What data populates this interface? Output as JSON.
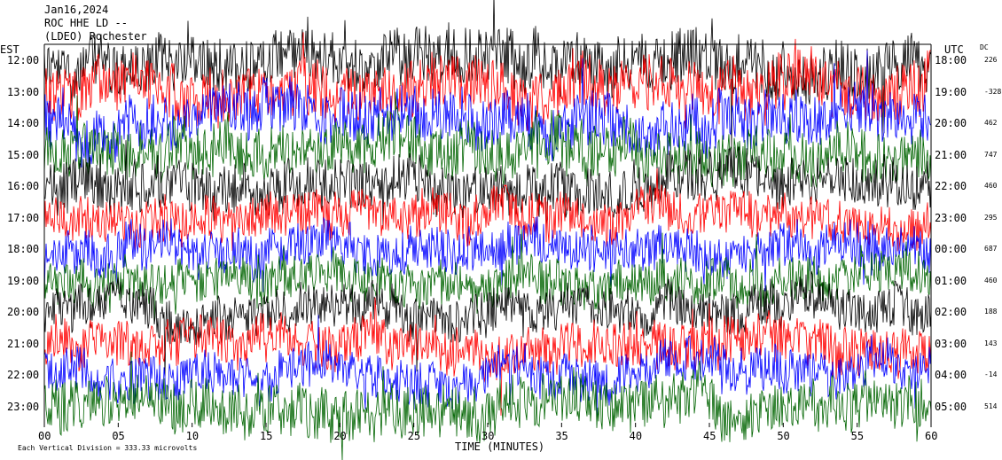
{
  "header": {
    "date": "Jan16,2024",
    "station": "ROC HHE LD --",
    "location": "(LDEO) Rochester"
  },
  "labels": {
    "left_zone": "EST",
    "right_zone": "UTC",
    "dc_heading": "DC",
    "x_axis_title": "TIME (MINUTES)",
    "scale_note": "Each Vertical Division = 333.33 microvolts"
  },
  "colors": {
    "trace_cycle": [
      "#000000",
      "#ff0000",
      "#0000ff",
      "#006400"
    ],
    "background": "#ffffff"
  },
  "chart_data": {
    "type": "line",
    "description_kind": "helicorder seismogram, one trace per hour",
    "x_ticks": [
      "00",
      "05",
      "10",
      "15",
      "20",
      "25",
      "30",
      "35",
      "40",
      "45",
      "50",
      "55",
      "60"
    ],
    "xlim": [
      0,
      60
    ],
    "rows": [
      {
        "est": "12:00",
        "utc": "18:00",
        "dc": "226",
        "color": "#000000",
        "amplitude": 0.9
      },
      {
        "est": "13:00",
        "utc": "19:00",
        "dc": "-328",
        "color": "#ff0000",
        "amplitude": 0.9
      },
      {
        "est": "14:00",
        "utc": "20:00",
        "dc": "462",
        "color": "#0000ff",
        "amplitude": 0.85
      },
      {
        "est": "15:00",
        "utc": "21:00",
        "dc": "747",
        "color": "#006400",
        "amplitude": 0.85
      },
      {
        "est": "16:00",
        "utc": "22:00",
        "dc": "460",
        "color": "#000000",
        "amplitude": 0.8
      },
      {
        "est": "17:00",
        "utc": "23:00",
        "dc": "295",
        "color": "#ff0000",
        "amplitude": 0.7
      },
      {
        "est": "18:00",
        "utc": "00:00",
        "dc": "687",
        "color": "#0000ff",
        "amplitude": 0.7
      },
      {
        "est": "19:00",
        "utc": "01:00",
        "dc": "460",
        "color": "#006400",
        "amplitude": 0.7
      },
      {
        "est": "20:00",
        "utc": "02:00",
        "dc": "188",
        "color": "#000000",
        "amplitude": 0.7
      },
      {
        "est": "21:00",
        "utc": "03:00",
        "dc": "143",
        "color": "#ff0000",
        "amplitude": 0.75
      },
      {
        "est": "22:00",
        "utc": "04:00",
        "dc": "-14",
        "color": "#0000ff",
        "amplitude": 0.7
      },
      {
        "est": "23:00",
        "utc": "05:00",
        "dc": "514",
        "color": "#006400",
        "amplitude": 0.8
      }
    ]
  }
}
